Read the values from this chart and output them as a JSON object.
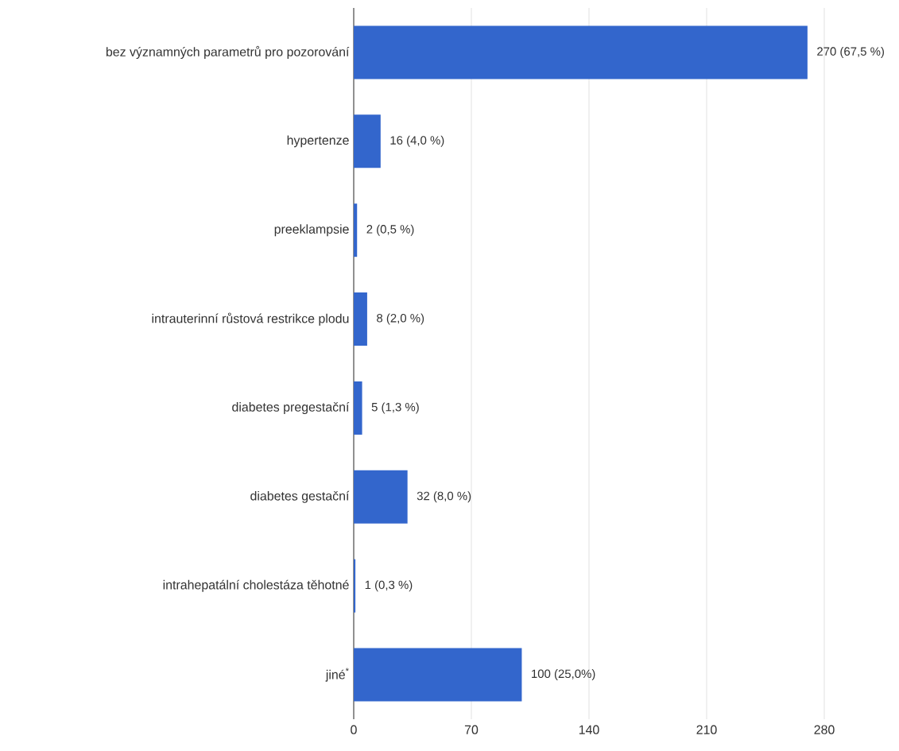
{
  "chart_data": {
    "type": "bar",
    "orientation": "horizontal",
    "categories": [
      "bez významných parametrů pro pozorování",
      "hypertenze",
      "preeklampsie",
      "intrauterinní růstová restrikce plodu",
      "diabetes pregestační",
      "diabetes gestační",
      "intrahepatální cholestáza těhotné",
      "jiné$^{*}$"
    ],
    "values": [
      270,
      16,
      2,
      8,
      5,
      32,
      1,
      100
    ],
    "value_labels": [
      "270 (67,5 %)",
      "16 (4,0 %)",
      "2 (0,5 %)",
      "8 (2,0 %)",
      "5 (1,3 %)",
      "32 (8,0 %)",
      "1 (0,3 %)",
      "100 (25,0%)"
    ],
    "color": "#3366cc",
    "xlim": [
      0,
      280
    ],
    "xticks": [
      0,
      70,
      140,
      210,
      280
    ],
    "grid": "x"
  }
}
